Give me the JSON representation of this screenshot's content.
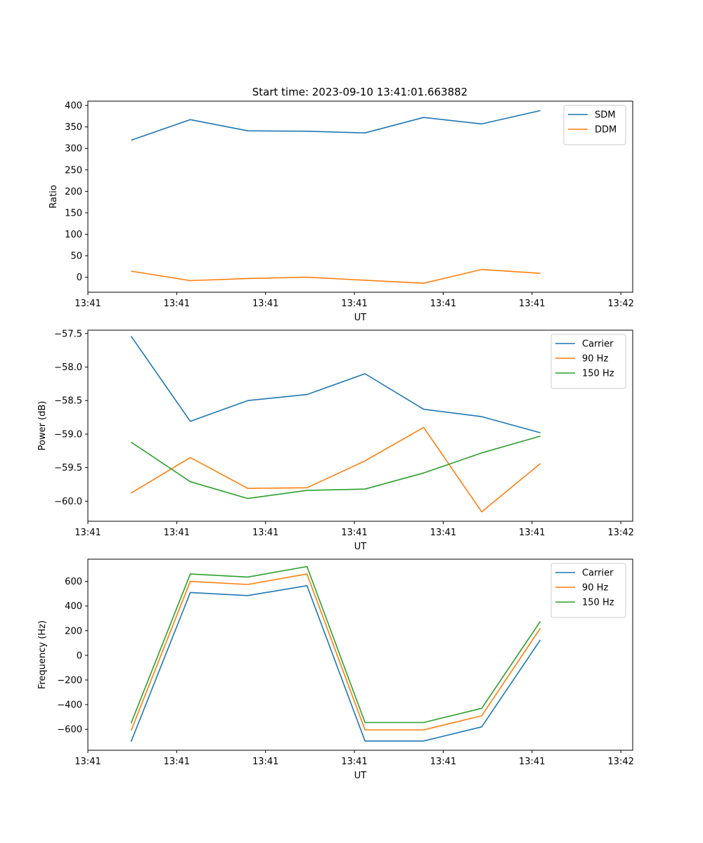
{
  "figure": {
    "suptitle": "Start time: 2023-09-10 13:41:01.663882"
  },
  "chart_data": [
    {
      "type": "line",
      "title": "",
      "xlabel": "UT",
      "ylabel": "Ratio",
      "xlim": [
        0,
        9.2
      ],
      "ylim": [
        -35,
        410
      ],
      "xtick_values": [
        0,
        1.5,
        3,
        4.5,
        6,
        7.5,
        9
      ],
      "xtick_labels": [
        "13:41",
        "13:41",
        "13:41",
        "13:41",
        "13:41",
        "13:41",
        "13:42"
      ],
      "ytick_values": [
        0,
        50,
        100,
        150,
        200,
        250,
        300,
        350,
        400
      ],
      "ytick_labels": [
        "0",
        "50",
        "100",
        "150",
        "200",
        "250",
        "300",
        "350",
        "400"
      ],
      "legend_position": "top-right",
      "x": [
        0.73,
        1.73,
        2.7,
        3.7,
        4.68,
        5.67,
        6.65,
        7.64
      ],
      "series": [
        {
          "name": "SDM",
          "color": "#1f77b4",
          "values": [
            319,
            367,
            341,
            340,
            336,
            372,
            357,
            388
          ]
        },
        {
          "name": "DDM",
          "color": "#ff7f0e",
          "values": [
            14,
            -8,
            -3,
            0,
            -7,
            -14,
            18,
            9
          ]
        }
      ]
    },
    {
      "type": "line",
      "title": "",
      "xlabel": "UT",
      "ylabel": "Power (dB)",
      "xlim": [
        0,
        9.2
      ],
      "ylim": [
        -60.3,
        -57.45
      ],
      "xtick_values": [
        0,
        1.5,
        3,
        4.5,
        6,
        7.5,
        9
      ],
      "xtick_labels": [
        "13:41",
        "13:41",
        "13:41",
        "13:41",
        "13:41",
        "13:41",
        "13:42"
      ],
      "ytick_values": [
        -60.0,
        -59.5,
        -59.0,
        -58.5,
        -58.0,
        -57.5
      ],
      "ytick_labels": [
        "−60.0",
        "−59.5",
        "−59.0",
        "−58.5",
        "−58.0",
        "−57.5"
      ],
      "legend_position": "top-right",
      "x": [
        0.73,
        1.73,
        2.7,
        3.7,
        4.68,
        5.67,
        6.65,
        7.64
      ],
      "series": [
        {
          "name": "Carrier",
          "color": "#1f77b4",
          "values": [
            -57.54,
            -58.81,
            -58.5,
            -58.41,
            -58.1,
            -58.63,
            -58.74,
            -58.98
          ]
        },
        {
          "name": "90 Hz",
          "color": "#ff7f0e",
          "values": [
            -59.88,
            -59.35,
            -59.81,
            -59.8,
            -59.4,
            -58.9,
            -60.16,
            -59.44
          ]
        },
        {
          "name": "150 Hz",
          "color": "#2ca02c",
          "values": [
            -59.12,
            -59.71,
            -59.96,
            -59.84,
            -59.82,
            -59.58,
            -59.28,
            -59.03
          ]
        }
      ]
    },
    {
      "type": "line",
      "title": "",
      "xlabel": "UT",
      "ylabel": "Frequency (Hz)",
      "xlim": [
        0,
        9.2
      ],
      "ylim": [
        -770,
        780
      ],
      "xtick_values": [
        0,
        1.5,
        3,
        4.5,
        6,
        7.5,
        9
      ],
      "xtick_labels": [
        "13:41",
        "13:41",
        "13:41",
        "13:41",
        "13:41",
        "13:41",
        "13:42"
      ],
      "ytick_values": [
        -600,
        -400,
        -200,
        0,
        200,
        400,
        600
      ],
      "ytick_labels": [
        "−600",
        "−400",
        "−200",
        "0",
        "200",
        "400",
        "600"
      ],
      "legend_position": "top-right",
      "x": [
        0.73,
        1.73,
        2.7,
        3.7,
        4.68,
        5.67,
        6.65,
        7.64
      ],
      "series": [
        {
          "name": "Carrier",
          "color": "#1f77b4",
          "values": [
            -700,
            510,
            485,
            565,
            -695,
            -695,
            -580,
            125
          ]
        },
        {
          "name": "90 Hz",
          "color": "#ff7f0e",
          "values": [
            -610,
            600,
            575,
            660,
            -605,
            -605,
            -490,
            220
          ]
        },
        {
          "name": "150 Hz",
          "color": "#2ca02c",
          "values": [
            -550,
            660,
            635,
            720,
            -545,
            -545,
            -430,
            275
          ]
        }
      ]
    }
  ]
}
